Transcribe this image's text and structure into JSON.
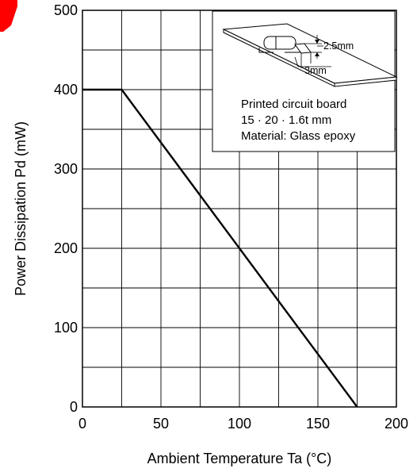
{
  "chart_data": {
    "type": "line",
    "xlabel": "Ambient Temperature   Ta   (°C)",
    "ylabel": "Power Dissipation   Pd   (mW)",
    "xlim": [
      0,
      200
    ],
    "ylim": [
      0,
      500
    ],
    "x_ticks": [
      "0",
      "50",
      "100",
      "150",
      "200"
    ],
    "y_ticks": [
      "0",
      "100",
      "200",
      "300",
      "400",
      "500"
    ],
    "grid": true,
    "grid_step_x": 25,
    "grid_step_y": 50,
    "series": [
      {
        "x": [
          0,
          25,
          175
        ],
        "y": [
          400,
          400,
          0
        ]
      }
    ],
    "inset": {
      "dim_height": "2.5mm",
      "dim_width": "3mm",
      "board_line": "Printed circuit board",
      "size_line": "15 · 20 · 1.6t mm",
      "material_line": "Material: Glass epoxy"
    },
    "colors": {
      "line": "#000000",
      "grid": "#000000",
      "mark": "#ff0000"
    }
  }
}
